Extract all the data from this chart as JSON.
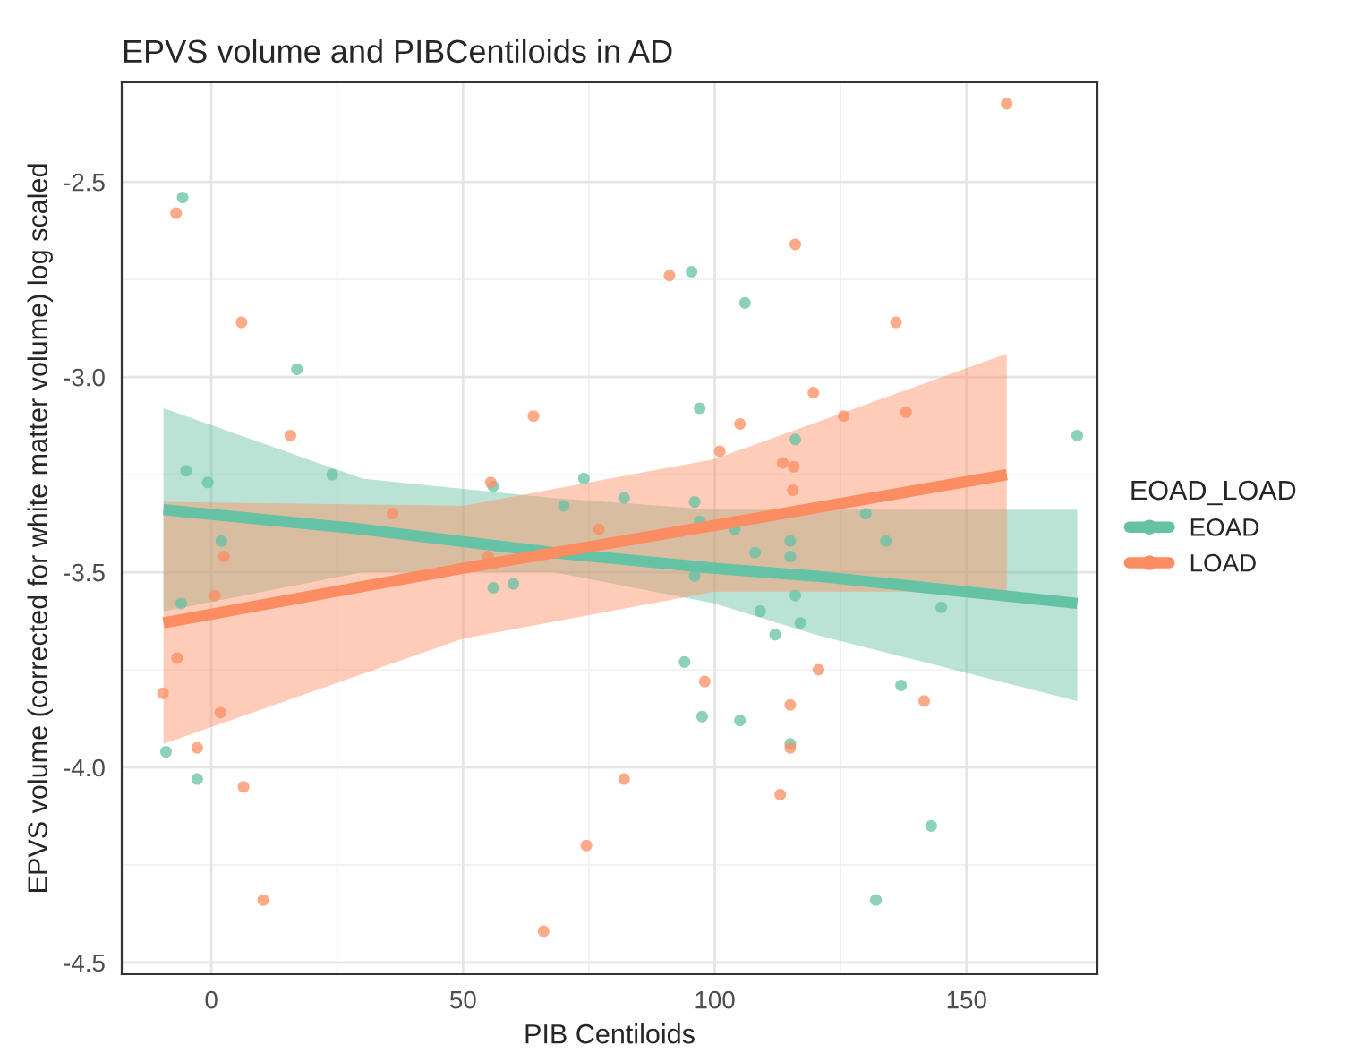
{
  "chart_data": {
    "type": "scatter",
    "title": "EPVS volume and PIBCentiloids in AD",
    "xlabel": "PIB Centiloids",
    "ylabel": "EPVS volume (corrected for white matter volume) log scaled",
    "legend_title": "EOAD_LOAD",
    "legend": "right",
    "grid": true,
    "xlim": [
      -17.8,
      176
    ],
    "ylim": [
      -4.53,
      -2.245
    ],
    "xticks": [
      0,
      50,
      100,
      150
    ],
    "yticks": [
      {
        "value": -2.5,
        "label": "-2.5"
      },
      {
        "value": -3.0,
        "label": "-3.0"
      },
      {
        "value": -3.5,
        "label": "-3.5"
      },
      {
        "value": -4.0,
        "label": "-4.0"
      },
      {
        "value": -4.5,
        "label": "-4.5"
      }
    ],
    "series": [
      {
        "name": "EOAD",
        "marker": "circle",
        "color": "#66c2a5",
        "x": [
          -5.7,
          17,
          -5,
          -0.7,
          24,
          56,
          2,
          -6,
          56,
          60,
          -9,
          -2.8,
          95.4,
          106,
          97,
          172,
          74,
          116,
          82,
          96,
          70,
          130,
          97,
          104,
          134,
          115,
          108,
          115,
          96,
          116,
          109,
          112,
          117,
          145,
          94,
          137,
          97.5,
          105,
          115,
          143,
          132
        ],
        "values": [
          -2.54,
          -2.98,
          -3.24,
          -3.27,
          -3.25,
          -3.28,
          -3.42,
          -3.58,
          -3.54,
          -3.53,
          -3.96,
          -4.03,
          -2.73,
          -2.81,
          -3.08,
          -3.15,
          -3.26,
          -3.16,
          -3.31,
          -3.32,
          -3.33,
          -3.35,
          -3.37,
          -3.39,
          -3.42,
          -3.42,
          -3.45,
          -3.46,
          -3.51,
          -3.56,
          -3.6,
          -3.66,
          -3.63,
          -3.59,
          -3.73,
          -3.79,
          -3.87,
          -3.88,
          -3.94,
          -4.15,
          -4.34
        ]
      },
      {
        "name": "LOAD",
        "marker": "circle",
        "color": "#fc8d62",
        "x": [
          -7,
          6,
          15.7,
          64,
          55.5,
          36,
          2.5,
          55,
          0.7,
          -6.8,
          -9.6,
          1.8,
          -2.8,
          6.4,
          10.3,
          66,
          158,
          116,
          91,
          136,
          119.6,
          125.6,
          138,
          105,
          101,
          113.5,
          115.7,
          115.5,
          77,
          120.6,
          98,
          141.6,
          115,
          115,
          82,
          113,
          74.5
        ],
        "values": [
          -2.58,
          -2.86,
          -3.15,
          -3.1,
          -3.27,
          -3.35,
          -3.46,
          -3.46,
          -3.56,
          -3.72,
          -3.81,
          -3.86,
          -3.95,
          -4.05,
          -4.34,
          -4.42,
          -2.3,
          -2.66,
          -2.74,
          -2.86,
          -3.04,
          -3.1,
          -3.09,
          -3.12,
          -3.19,
          -3.22,
          -3.23,
          -3.29,
          -3.39,
          -3.75,
          -3.78,
          -3.83,
          -3.84,
          -3.95,
          -4.03,
          -4.07,
          -4.2
        ]
      },
      {
        "type": "line",
        "color": "#66c2a5",
        "x": [
          -9.5,
          30,
          68,
          100,
          120,
          172
        ],
        "values": [
          -3.34,
          -3.39,
          -3.45,
          -3.49,
          -3.51,
          -3.58
        ],
        "lower": [
          -3.6,
          -3.5,
          -3.5,
          -3.58,
          -3.66,
          -3.83
        ],
        "upper": [
          -3.08,
          -3.26,
          -3.31,
          -3.34,
          -3.34,
          -3.34
        ]
      },
      {
        "type": "line",
        "color": "#fc8d62",
        "x": [
          -9.5,
          50,
          100,
          158
        ],
        "values": [
          -3.63,
          -3.49,
          -3.38,
          -3.25
        ],
        "lower": [
          -3.94,
          -3.67,
          -3.55,
          -3.55
        ],
        "upper": [
          -3.32,
          -3.33,
          -3.21,
          -2.94
        ]
      }
    ]
  }
}
